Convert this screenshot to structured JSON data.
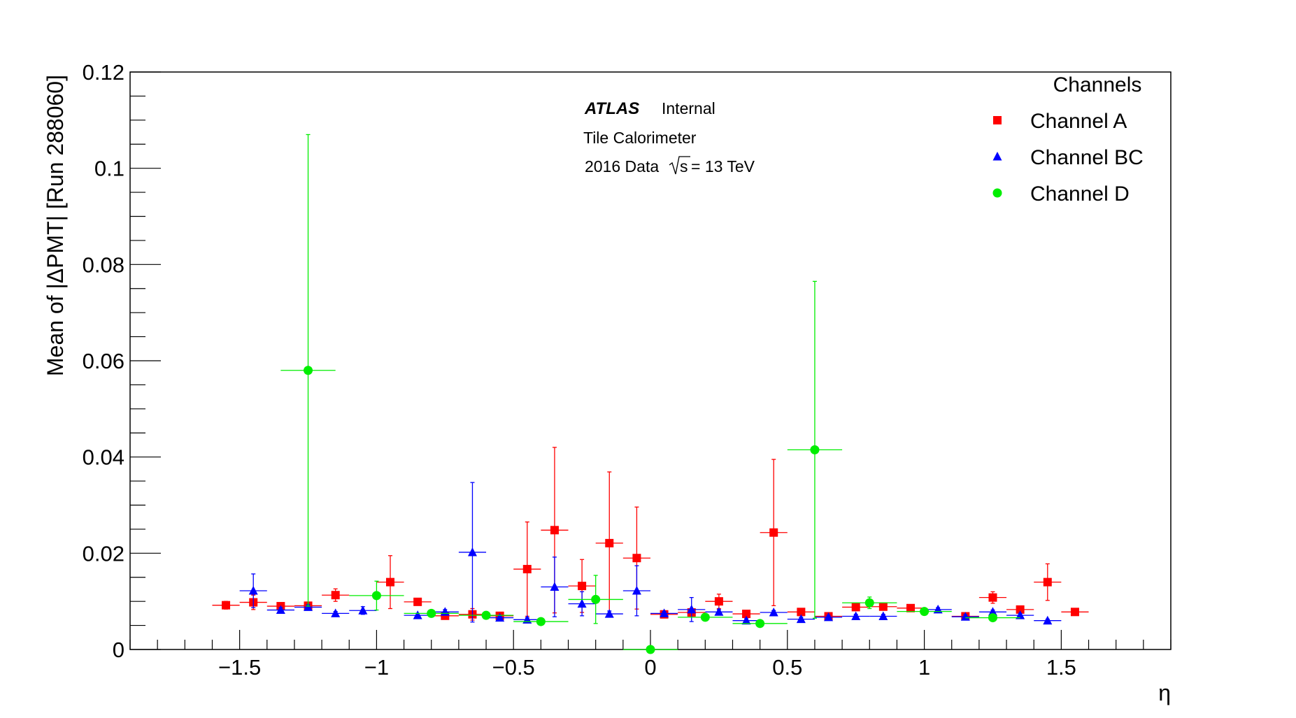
{
  "chart_data": {
    "type": "scatter",
    "xlabel": "η",
    "ylabel": "Mean of |ΔPMT| [Run 288060]",
    "xlim": [
      -1.9,
      1.9
    ],
    "ylim": [
      0,
      0.12
    ],
    "x_ticks": [
      -1.5,
      -1,
      -0.5,
      0,
      0.5,
      1,
      1.5
    ],
    "x_tick_labels": [
      "−1.5",
      "−1",
      "−0.5",
      "0",
      "0.5",
      "1",
      "1.5"
    ],
    "y_ticks": [
      0,
      0.02,
      0.04,
      0.06,
      0.08,
      0.1,
      0.12
    ],
    "y_tick_labels": [
      "0",
      "0.02",
      "0.04",
      "0.06",
      "0.08",
      "0.1",
      "0.12"
    ],
    "grid": false,
    "legend": {
      "title": "Channels",
      "position": "top-right"
    },
    "annotations": {
      "atlas": "ATLAS",
      "internal": "Internal",
      "detector": "Tile Calorimeter",
      "data_label": "2016 Data",
      "sqrt_s": "s",
      "energy": "= 13 TeV"
    },
    "series": [
      {
        "name": "Channel A",
        "color": "#ff0000",
        "marker": "square",
        "points": [
          {
            "x": -1.55,
            "y": 0.0092,
            "xerr": 0.05,
            "yerr": 0.0008
          },
          {
            "x": -1.45,
            "y": 0.0098,
            "xerr": 0.05,
            "yerr": 0.0015
          },
          {
            "x": -1.35,
            "y": 0.009,
            "xerr": 0.05,
            "yerr": 0.0006
          },
          {
            "x": -1.25,
            "y": 0.0091,
            "xerr": 0.05,
            "yerr": 0.0006
          },
          {
            "x": -1.15,
            "y": 0.0113,
            "xerr": 0.05,
            "yerr": 0.0013
          },
          {
            "x": -0.95,
            "y": 0.014,
            "xerr": 0.05,
            "yerr": 0.0055
          },
          {
            "x": -0.85,
            "y": 0.0099,
            "xerr": 0.05,
            "yerr": 0.0007
          },
          {
            "x": -0.75,
            "y": 0.007,
            "xerr": 0.05,
            "yerr": 0.0004
          },
          {
            "x": -0.65,
            "y": 0.0073,
            "xerr": 0.05,
            "yerr": 0.0012
          },
          {
            "x": -0.55,
            "y": 0.007,
            "xerr": 0.05,
            "yerr": 0.0005
          },
          {
            "x": -0.45,
            "y": 0.0167,
            "xerr": 0.05,
            "yerr": 0.0098
          },
          {
            "x": -0.35,
            "y": 0.0248,
            "xerr": 0.05,
            "yerr": 0.0172
          },
          {
            "x": -0.25,
            "y": 0.0132,
            "xerr": 0.05,
            "yerr": 0.0055
          },
          {
            "x": -0.15,
            "y": 0.0221,
            "xerr": 0.05,
            "yerr": 0.0148
          },
          {
            "x": -0.05,
            "y": 0.019,
            "xerr": 0.05,
            "yerr": 0.0106
          },
          {
            "x": 0.05,
            "y": 0.0073,
            "xerr": 0.05,
            "yerr": 0.0005
          },
          {
            "x": 0.15,
            "y": 0.0077,
            "xerr": 0.05,
            "yerr": 0.0008
          },
          {
            "x": 0.25,
            "y": 0.01,
            "xerr": 0.05,
            "yerr": 0.0015
          },
          {
            "x": 0.35,
            "y": 0.0074,
            "xerr": 0.05,
            "yerr": 0.0005
          },
          {
            "x": 0.45,
            "y": 0.0243,
            "xerr": 0.05,
            "yerr": 0.0152
          },
          {
            "x": 0.55,
            "y": 0.0078,
            "xerr": 0.05,
            "yerr": 0.0005
          },
          {
            "x": 0.65,
            "y": 0.0069,
            "xerr": 0.05,
            "yerr": 0.0005
          },
          {
            "x": 0.75,
            "y": 0.0088,
            "xerr": 0.05,
            "yerr": 0.0006
          },
          {
            "x": 0.85,
            "y": 0.0089,
            "xerr": 0.05,
            "yerr": 0.0006
          },
          {
            "x": 0.95,
            "y": 0.0086,
            "xerr": 0.05,
            "yerr": 0.0005
          },
          {
            "x": 1.15,
            "y": 0.0069,
            "xerr": 0.05,
            "yerr": 0.0004
          },
          {
            "x": 1.25,
            "y": 0.0108,
            "xerr": 0.05,
            "yerr": 0.0012
          },
          {
            "x": 1.35,
            "y": 0.0083,
            "xerr": 0.05,
            "yerr": 0.0005
          },
          {
            "x": 1.45,
            "y": 0.014,
            "xerr": 0.05,
            "yerr": 0.0038
          },
          {
            "x": 1.55,
            "y": 0.0078,
            "xerr": 0.05,
            "yerr": 0.0004
          }
        ]
      },
      {
        "name": "Channel BC",
        "color": "#0000ff",
        "marker": "triangle",
        "points": [
          {
            "x": -1.45,
            "y": 0.0122,
            "xerr": 0.05,
            "yerr": 0.0035
          },
          {
            "x": -1.35,
            "y": 0.0082,
            "xerr": 0.05,
            "yerr": 0.0005
          },
          {
            "x": -1.25,
            "y": 0.0088,
            "xerr": 0.05,
            "yerr": 0.0005
          },
          {
            "x": -1.15,
            "y": 0.0075,
            "xerr": 0.05,
            "yerr": 0.0004
          },
          {
            "x": -1.05,
            "y": 0.0081,
            "xerr": 0.05,
            "yerr": 0.0008
          },
          {
            "x": -0.85,
            "y": 0.0071,
            "xerr": 0.05,
            "yerr": 0.0004
          },
          {
            "x": -0.75,
            "y": 0.0078,
            "xerr": 0.05,
            "yerr": 0.0005
          },
          {
            "x": -0.65,
            "y": 0.0202,
            "xerr": 0.05,
            "yerr": 0.0145
          },
          {
            "x": -0.55,
            "y": 0.0066,
            "xerr": 0.05,
            "yerr": 0.0004
          },
          {
            "x": -0.45,
            "y": 0.0062,
            "xerr": 0.05,
            "yerr": 0.0004
          },
          {
            "x": -0.35,
            "y": 0.013,
            "xerr": 0.05,
            "yerr": 0.0062
          },
          {
            "x": -0.25,
            "y": 0.0095,
            "xerr": 0.05,
            "yerr": 0.0025
          },
          {
            "x": -0.15,
            "y": 0.0074,
            "xerr": 0.05,
            "yerr": 0.0006
          },
          {
            "x": -0.05,
            "y": 0.0122,
            "xerr": 0.05,
            "yerr": 0.0052
          },
          {
            "x": 0.05,
            "y": 0.0075,
            "xerr": 0.05,
            "yerr": 0.0004
          },
          {
            "x": 0.15,
            "y": 0.0083,
            "xerr": 0.05,
            "yerr": 0.0025
          },
          {
            "x": 0.25,
            "y": 0.0078,
            "xerr": 0.05,
            "yerr": 0.0005
          },
          {
            "x": 0.35,
            "y": 0.006,
            "xerr": 0.05,
            "yerr": 0.0004
          },
          {
            "x": 0.45,
            "y": 0.0077,
            "xerr": 0.05,
            "yerr": 0.0004
          },
          {
            "x": 0.55,
            "y": 0.0063,
            "xerr": 0.05,
            "yerr": 0.0004
          },
          {
            "x": 0.65,
            "y": 0.0067,
            "xerr": 0.05,
            "yerr": 0.0004
          },
          {
            "x": 0.75,
            "y": 0.0069,
            "xerr": 0.05,
            "yerr": 0.0004
          },
          {
            "x": 0.85,
            "y": 0.0069,
            "xerr": 0.05,
            "yerr": 0.0004
          },
          {
            "x": 1.05,
            "y": 0.0083,
            "xerr": 0.05,
            "yerr": 0.0004
          },
          {
            "x": 1.15,
            "y": 0.0068,
            "xerr": 0.05,
            "yerr": 0.0004
          },
          {
            "x": 1.25,
            "y": 0.0078,
            "xerr": 0.05,
            "yerr": 0.0004
          },
          {
            "x": 1.35,
            "y": 0.0071,
            "xerr": 0.05,
            "yerr": 0.0004
          },
          {
            "x": 1.45,
            "y": 0.006,
            "xerr": 0.05,
            "yerr": 0.0003
          }
        ]
      },
      {
        "name": "Channel D",
        "color": "#00ee00",
        "marker": "circle",
        "points": [
          {
            "x": -1.25,
            "y": 0.058,
            "xerr": 0.1,
            "yerr": 0.049
          },
          {
            "x": -1.0,
            "y": 0.0112,
            "xerr": 0.1,
            "yerr": 0.003
          },
          {
            "x": -0.8,
            "y": 0.0075,
            "xerr": 0.1,
            "yerr": 0.0005
          },
          {
            "x": -0.6,
            "y": 0.0071,
            "xerr": 0.1,
            "yerr": 0.0005
          },
          {
            "x": -0.4,
            "y": 0.0058,
            "xerr": 0.1,
            "yerr": 0.0004
          },
          {
            "x": -0.2,
            "y": 0.0104,
            "xerr": 0.1,
            "yerr": 0.005
          },
          {
            "x": 0.0,
            "y": 0.0,
            "xerr": 0.1,
            "yerr": 0.0
          },
          {
            "x": 0.2,
            "y": 0.0067,
            "xerr": 0.1,
            "yerr": 0.0004
          },
          {
            "x": 0.4,
            "y": 0.0054,
            "xerr": 0.1,
            "yerr": 0.0004
          },
          {
            "x": 0.6,
            "y": 0.0415,
            "xerr": 0.1,
            "yerr": 0.035
          },
          {
            "x": 0.8,
            "y": 0.0097,
            "xerr": 0.1,
            "yerr": 0.0012
          },
          {
            "x": 1.0,
            "y": 0.0079,
            "xerr": 0.1,
            "yerr": 0.0005
          },
          {
            "x": 1.25,
            "y": 0.0066,
            "xerr": 0.1,
            "yerr": 0.0004
          }
        ]
      }
    ]
  }
}
